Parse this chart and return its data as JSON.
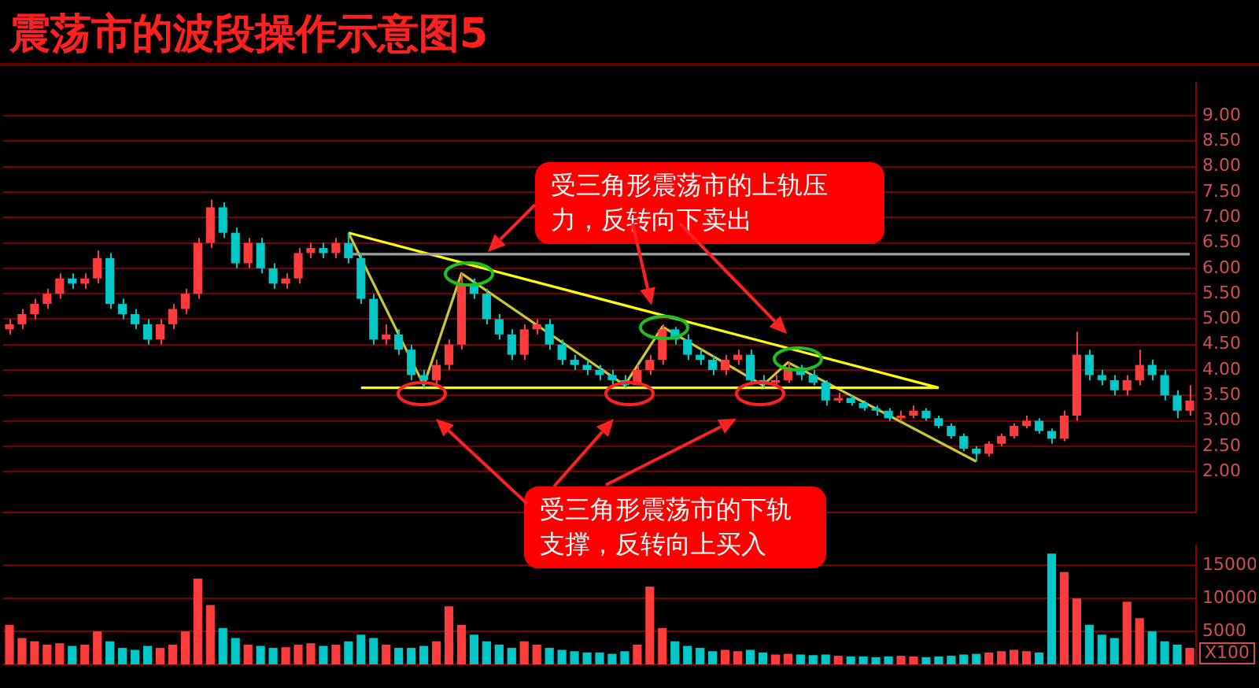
{
  "chart_data": [
    {
      "type": "candlestick",
      "title": "震荡市的波段操作示意图5",
      "categories": [
        null,
        null,
        null,
        null,
        null,
        null,
        null,
        null,
        null,
        null,
        null,
        null,
        null,
        null,
        null,
        null,
        null,
        null,
        null,
        null,
        null,
        null,
        null,
        null,
        null,
        null,
        null,
        null,
        null,
        null,
        null,
        null,
        null,
        null,
        null,
        null,
        null,
        null,
        null,
        null,
        null,
        null,
        null,
        null,
        null,
        null,
        null,
        null,
        null,
        null,
        null,
        null,
        null,
        null,
        null,
        null,
        null,
        null,
        null,
        null,
        null,
        null,
        null,
        null,
        null,
        null,
        null,
        null,
        null,
        null,
        null,
        null,
        null,
        null,
        null,
        null,
        null,
        null,
        null,
        null,
        null,
        null,
        null,
        null,
        null,
        null,
        null,
        null,
        null,
        null,
        null,
        null,
        null,
        null,
        null
      ],
      "ohlc": [
        [
          4.8,
          5.0,
          4.7,
          4.9
        ],
        [
          4.9,
          5.2,
          4.8,
          5.1
        ],
        [
          5.1,
          5.4,
          5.0,
          5.3
        ],
        [
          5.3,
          5.6,
          5.2,
          5.5
        ],
        [
          5.5,
          5.9,
          5.4,
          5.8
        ],
        [
          5.8,
          5.9,
          5.6,
          5.7
        ],
        [
          5.7,
          5.9,
          5.6,
          5.8
        ],
        [
          5.8,
          6.35,
          5.7,
          6.2
        ],
        [
          6.2,
          6.3,
          5.2,
          5.3
        ],
        [
          5.3,
          5.4,
          5.0,
          5.1
        ],
        [
          5.1,
          5.2,
          4.8,
          4.9
        ],
        [
          4.9,
          5.0,
          4.5,
          4.6
        ],
        [
          4.6,
          5.0,
          4.5,
          4.9
        ],
        [
          4.9,
          5.3,
          4.8,
          5.2
        ],
        [
          5.2,
          5.6,
          5.1,
          5.5
        ],
        [
          5.5,
          6.6,
          5.4,
          6.5
        ],
        [
          6.5,
          7.35,
          6.4,
          7.2
        ],
        [
          7.2,
          7.3,
          6.6,
          6.7
        ],
        [
          6.7,
          6.8,
          6.0,
          6.1
        ],
        [
          6.1,
          6.6,
          6.0,
          6.5
        ],
        [
          6.5,
          6.6,
          5.9,
          6.0
        ],
        [
          6.0,
          6.1,
          5.6,
          5.7
        ],
        [
          5.7,
          5.9,
          5.6,
          5.8
        ],
        [
          5.8,
          6.4,
          5.7,
          6.3
        ],
        [
          6.3,
          6.5,
          6.2,
          6.4
        ],
        [
          6.4,
          6.5,
          6.2,
          6.3
        ],
        [
          6.3,
          6.6,
          6.2,
          6.5
        ],
        [
          6.5,
          6.7,
          6.1,
          6.2
        ],
        [
          6.2,
          6.3,
          5.3,
          5.4
        ],
        [
          5.4,
          5.5,
          4.5,
          4.6
        ],
        [
          4.6,
          4.9,
          4.5,
          4.7
        ],
        [
          4.7,
          4.8,
          4.3,
          4.4
        ],
        [
          4.4,
          4.5,
          3.8,
          3.9
        ],
        [
          3.9,
          4.0,
          3.65,
          3.8
        ],
        [
          3.8,
          4.2,
          3.7,
          4.1
        ],
        [
          4.1,
          4.6,
          4.0,
          4.5
        ],
        [
          4.5,
          5.9,
          4.4,
          5.7
        ],
        [
          5.7,
          5.8,
          5.4,
          5.5
        ],
        [
          5.5,
          5.6,
          4.9,
          5.0
        ],
        [
          5.0,
          5.1,
          4.6,
          4.7
        ],
        [
          4.7,
          4.8,
          4.2,
          4.3
        ],
        [
          4.3,
          4.9,
          4.2,
          4.8
        ],
        [
          4.8,
          5.0,
          4.7,
          4.9
        ],
        [
          4.9,
          5.0,
          4.4,
          4.5
        ],
        [
          4.5,
          4.6,
          4.1,
          4.2
        ],
        [
          4.2,
          4.3,
          4.0,
          4.1
        ],
        [
          4.1,
          4.2,
          3.9,
          4.0
        ],
        [
          4.0,
          4.1,
          3.8,
          3.9
        ],
        [
          3.9,
          4.0,
          3.7,
          3.8
        ],
        [
          3.8,
          3.9,
          3.65,
          3.7
        ],
        [
          3.7,
          4.1,
          3.7,
          4.0
        ],
        [
          4.0,
          4.3,
          3.9,
          4.2
        ],
        [
          4.2,
          4.9,
          4.1,
          4.8
        ],
        [
          4.8,
          4.85,
          4.5,
          4.6
        ],
        [
          4.6,
          4.7,
          4.2,
          4.3
        ],
        [
          4.3,
          4.4,
          4.1,
          4.2
        ],
        [
          4.2,
          4.3,
          3.9,
          4.0
        ],
        [
          4.0,
          4.3,
          3.9,
          4.2
        ],
        [
          4.2,
          4.4,
          4.1,
          4.3
        ],
        [
          4.3,
          4.4,
          3.7,
          3.8
        ],
        [
          3.8,
          3.9,
          3.65,
          3.75
        ],
        [
          3.75,
          3.9,
          3.7,
          3.8
        ],
        [
          3.8,
          4.15,
          3.75,
          4.05
        ],
        [
          4.05,
          4.1,
          3.8,
          3.9
        ],
        [
          3.9,
          4.0,
          3.7,
          3.75
        ],
        [
          3.75,
          3.8,
          3.3,
          3.4
        ],
        [
          3.4,
          3.55,
          3.35,
          3.45
        ],
        [
          3.45,
          3.5,
          3.3,
          3.35
        ],
        [
          3.35,
          3.4,
          3.2,
          3.25
        ],
        [
          3.25,
          3.3,
          3.1,
          3.2
        ],
        [
          3.2,
          3.25,
          3.0,
          3.05
        ],
        [
          3.05,
          3.2,
          3.0,
          3.1
        ],
        [
          3.1,
          3.3,
          3.05,
          3.2
        ],
        [
          3.2,
          3.25,
          3.0,
          3.05
        ],
        [
          3.05,
          3.1,
          2.85,
          2.9
        ],
        [
          2.9,
          2.95,
          2.65,
          2.7
        ],
        [
          2.7,
          2.75,
          2.4,
          2.45
        ],
        [
          2.45,
          2.5,
          2.2,
          2.35
        ],
        [
          2.35,
          2.6,
          2.3,
          2.55
        ],
        [
          2.55,
          2.75,
          2.5,
          2.7
        ],
        [
          2.7,
          2.95,
          2.65,
          2.9
        ],
        [
          2.9,
          3.1,
          2.85,
          3.0
        ],
        [
          3.0,
          3.05,
          2.75,
          2.8
        ],
        [
          2.8,
          2.85,
          2.55,
          2.65
        ],
        [
          2.65,
          3.2,
          2.6,
          3.1
        ],
        [
          3.1,
          4.75,
          3.0,
          4.3
        ],
        [
          4.3,
          4.4,
          3.8,
          3.9
        ],
        [
          3.9,
          4.0,
          3.7,
          3.8
        ],
        [
          3.8,
          3.9,
          3.5,
          3.6
        ],
        [
          3.6,
          3.9,
          3.5,
          3.8
        ],
        [
          3.8,
          4.4,
          3.7,
          4.1
        ],
        [
          4.1,
          4.2,
          3.8,
          3.9
        ],
        [
          3.9,
          4.0,
          3.4,
          3.5
        ],
        [
          3.5,
          3.6,
          3.05,
          3.2
        ],
        [
          3.2,
          3.7,
          3.1,
          3.4
        ]
      ],
      "colors": [
        "#ff3c3c",
        "#ff3c3c",
        "#ff3c3c",
        "#ff3c3c",
        "#ff3c3c",
        "#00c8c8",
        "#ff3c3c",
        "#ff3c3c",
        "#00c8c8",
        "#00c8c8",
        "#00c8c8",
        "#00c8c8",
        "#ff3c3c",
        "#ff3c3c",
        "#ff3c3c",
        "#ff3c3c",
        "#ff3c3c",
        "#00c8c8",
        "#00c8c8",
        "#ff3c3c",
        "#00c8c8",
        "#00c8c8",
        "#ff3c3c",
        "#ff3c3c",
        "#ff3c3c",
        "#00c8c8",
        "#ff3c3c",
        "#00c8c8",
        "#00c8c8",
        "#00c8c8",
        "#ff3c3c",
        "#00c8c8",
        "#00c8c8",
        "#00c8c8",
        "#ff3c3c",
        "#ff3c3c",
        "#ff3c3c",
        "#00c8c8",
        "#00c8c8",
        "#00c8c8",
        "#00c8c8",
        "#ff3c3c",
        "#ff3c3c",
        "#00c8c8",
        "#00c8c8",
        "#00c8c8",
        "#00c8c8",
        "#00c8c8",
        "#00c8c8",
        "#00c8c8",
        "#ff3c3c",
        "#ff3c3c",
        "#ff3c3c",
        "#00c8c8",
        "#00c8c8",
        "#00c8c8",
        "#00c8c8",
        "#ff3c3c",
        "#ff3c3c",
        "#00c8c8",
        "#00c8c8",
        "#ff3c3c",
        "#ff3c3c",
        "#00c8c8",
        "#00c8c8",
        "#00c8c8",
        "#ff3c3c",
        "#00c8c8",
        "#00c8c8",
        "#00c8c8",
        "#00c8c8",
        "#ff3c3c",
        "#ff3c3c",
        "#00c8c8",
        "#00c8c8",
        "#00c8c8",
        "#00c8c8",
        "#00c8c8",
        "#ff3c3c",
        "#ff3c3c",
        "#ff3c3c",
        "#ff3c3c",
        "#00c8c8",
        "#00c8c8",
        "#ff3c3c",
        "#ff3c3c",
        "#00c8c8",
        "#00c8c8",
        "#00c8c8",
        "#ff3c3c",
        "#ff3c3c",
        "#00c8c8",
        "#00c8c8",
        "#00c8c8",
        "#ff3c3c"
      ],
      "ylim": [
        1.2,
        9.65
      ],
      "yticks": [
        {
          "value": 2,
          "label": "2.00"
        },
        {
          "value": 2.5,
          "label": "2.50"
        },
        {
          "value": 3,
          "label": "3.00"
        },
        {
          "value": 3.5,
          "label": "3.50"
        },
        {
          "value": 4,
          "label": "4.00"
        },
        {
          "value": 4.5,
          "label": "4.50"
        },
        {
          "value": 5,
          "label": "5.00"
        },
        {
          "value": 5.5,
          "label": "5.50"
        },
        {
          "value": 6,
          "label": "6.00"
        },
        {
          "value": 6.5,
          "label": "6.50"
        },
        {
          "value": 7,
          "label": "7.00"
        },
        {
          "value": 7.5,
          "label": "7.50"
        },
        {
          "value": 8,
          "label": "8.00"
        },
        {
          "value": 8.5,
          "label": "8.50"
        },
        {
          "value": 9,
          "label": "9.00"
        }
      ],
      "tick_labels": "y",
      "grid": "y",
      "legend": false,
      "annotations": [
        "受三角形震荡市的上轨压力，反转向下卖出",
        "受三角形震荡市的下轨支撑，反转向上买入"
      ],
      "series": [
        {
          "type": "line",
          "color": "#a0a0a0",
          "values": [
            null,
            null,
            null,
            null,
            null,
            null,
            null,
            null,
            null,
            null,
            null,
            null,
            null,
            null,
            null,
            null,
            null,
            null,
            null,
            null,
            null,
            null,
            null,
            null,
            null,
            null,
            null,
            6.28,
            null,
            null,
            null,
            null,
            null,
            null,
            null,
            null,
            null,
            null,
            null,
            null,
            null,
            null,
            null,
            null,
            null,
            null,
            null,
            null,
            null,
            null,
            null,
            null,
            null,
            null,
            null,
            null,
            null,
            null,
            null,
            null,
            null,
            null,
            null,
            null,
            null,
            null,
            null,
            null,
            null,
            null,
            null,
            null,
            null,
            null,
            null,
            null,
            null,
            null,
            null,
            null,
            null,
            null,
            null,
            null,
            null,
            null,
            null,
            null,
            null,
            null,
            null,
            null,
            null,
            null,
            6.28
          ]
        },
        {
          "type": "line",
          "color": "#ffff00",
          "values": [
            null,
            null,
            null,
            null,
            null,
            null,
            null,
            null,
            null,
            null,
            null,
            null,
            null,
            null,
            null,
            null,
            null,
            null,
            null,
            null,
            null,
            null,
            null,
            null,
            null,
            null,
            null,
            6.7,
            null,
            null,
            null,
            null,
            null,
            null,
            null,
            null,
            null,
            null,
            null,
            null,
            null,
            null,
            null,
            null,
            null,
            null,
            null,
            null,
            null,
            null,
            null,
            null,
            null,
            null,
            null,
            null,
            null,
            null,
            null,
            null,
            null,
            null,
            null,
            null,
            null,
            null,
            null,
            null,
            null,
            null,
            null,
            null,
            null,
            null,
            3.65,
            null,
            null,
            null,
            null,
            null,
            null,
            null,
            null,
            null,
            null,
            null,
            null,
            null,
            null,
            null,
            null,
            null,
            null,
            null,
            null
          ]
        },
        {
          "type": "line",
          "color": "#ffff00",
          "values": [
            null,
            null,
            null,
            null,
            null,
            null,
            null,
            null,
            null,
            null,
            null,
            null,
            null,
            null,
            null,
            null,
            null,
            null,
            null,
            null,
            null,
            null,
            null,
            null,
            null,
            null,
            null,
            null,
            3.65,
            null,
            null,
            null,
            null,
            null,
            null,
            null,
            null,
            null,
            null,
            null,
            null,
            null,
            null,
            null,
            null,
            null,
            null,
            null,
            null,
            null,
            null,
            null,
            null,
            null,
            null,
            null,
            null,
            null,
            null,
            null,
            null,
            null,
            null,
            null,
            null,
            null,
            null,
            null,
            null,
            null,
            null,
            null,
            null,
            null,
            3.65,
            null,
            null,
            null,
            null,
            null,
            null,
            null,
            null,
            null,
            null,
            null,
            null,
            null,
            null,
            null,
            null,
            null,
            null,
            null,
            null
          ]
        },
        {
          "type": "line",
          "color": "#c8c832",
          "values": [
            null,
            null,
            null,
            null,
            null,
            null,
            null,
            null,
            null,
            null,
            null,
            null,
            null,
            null,
            null,
            null,
            null,
            null,
            null,
            null,
            null,
            null,
            null,
            null,
            null,
            null,
            null,
            6.7,
            null,
            null,
            null,
            null,
            null,
            3.7,
            null,
            null,
            5.9,
            null,
            null,
            null,
            null,
            null,
            null,
            null,
            null,
            null,
            null,
            null,
            null,
            3.7,
            null,
            null,
            4.85,
            null,
            null,
            null,
            null,
            null,
            null,
            null,
            3.7,
            null,
            4.15,
            null,
            null,
            null,
            null,
            null,
            null,
            null,
            null,
            null,
            null,
            null,
            null,
            null,
            null,
            2.2,
            null,
            null,
            null,
            null,
            null,
            null,
            null,
            null,
            null,
            null,
            null,
            null,
            null,
            null,
            null,
            null,
            null
          ]
        }
      ]
    },
    {
      "type": "bar",
      "ylabel": "X100",
      "categories": [
        null,
        null,
        null,
        null,
        null,
        null,
        null,
        null,
        null,
        null,
        null,
        null,
        null,
        null,
        null,
        null,
        null,
        null,
        null,
        null,
        null,
        null,
        null,
        null,
        null,
        null,
        null,
        null,
        null,
        null,
        null,
        null,
        null,
        null,
        null,
        null,
        null,
        null,
        null,
        null,
        null,
        null,
        null,
        null,
        null,
        null,
        null,
        null,
        null,
        null,
        null,
        null,
        null,
        null,
        null,
        null,
        null,
        null,
        null,
        null,
        null,
        null,
        null,
        null,
        null,
        null,
        null,
        null,
        null,
        null,
        null,
        null,
        null,
        null,
        null,
        null,
        null,
        null,
        null,
        null,
        null,
        null,
        null,
        null,
        null,
        null,
        null,
        null,
        null,
        null,
        null,
        null,
        null,
        null,
        null
      ],
      "values": [
        6000,
        4000,
        3500,
        3000,
        3200,
        2800,
        3000,
        5000,
        3500,
        2500,
        2200,
        2800,
        2500,
        3000,
        5000,
        13000,
        9000,
        5500,
        4000,
        3000,
        2800,
        2500,
        2600,
        3000,
        3200,
        2800,
        3000,
        3500,
        4500,
        4000,
        3000,
        2500,
        2500,
        2800,
        3500,
        8800,
        6000,
        4500,
        3500,
        3000,
        2500,
        3500,
        3000,
        2500,
        2200,
        2000,
        1800,
        1800,
        1600,
        2000,
        3000,
        11800,
        5500,
        3500,
        2800,
        2500,
        2000,
        2200,
        2000,
        2200,
        1800,
        1500,
        1600,
        1500,
        1400,
        1500,
        1300,
        1200,
        1200,
        1100,
        1200,
        1300,
        1200,
        1100,
        1200,
        1300,
        1500,
        1600,
        1800,
        2000,
        2200,
        2000,
        1800,
        16800,
        14000,
        10000,
        6000,
        4500,
        4000,
        9500,
        7000,
        5000,
        3500,
        3000,
        2500
      ],
      "colors": [
        "#ff3c3c",
        "#ff3c3c",
        "#ff3c3c",
        "#ff3c3c",
        "#ff3c3c",
        "#00c8c8",
        "#ff3c3c",
        "#ff3c3c",
        "#00c8c8",
        "#00c8c8",
        "#00c8c8",
        "#00c8c8",
        "#ff3c3c",
        "#ff3c3c",
        "#ff3c3c",
        "#ff3c3c",
        "#ff3c3c",
        "#00c8c8",
        "#00c8c8",
        "#ff3c3c",
        "#00c8c8",
        "#00c8c8",
        "#ff3c3c",
        "#ff3c3c",
        "#ff3c3c",
        "#00c8c8",
        "#ff3c3c",
        "#00c8c8",
        "#00c8c8",
        "#00c8c8",
        "#ff3c3c",
        "#00c8c8",
        "#00c8c8",
        "#00c8c8",
        "#ff3c3c",
        "#ff3c3c",
        "#ff3c3c",
        "#00c8c8",
        "#00c8c8",
        "#00c8c8",
        "#00c8c8",
        "#ff3c3c",
        "#ff3c3c",
        "#00c8c8",
        "#00c8c8",
        "#00c8c8",
        "#00c8c8",
        "#00c8c8",
        "#00c8c8",
        "#00c8c8",
        "#ff3c3c",
        "#ff3c3c",
        "#ff3c3c",
        "#00c8c8",
        "#00c8c8",
        "#00c8c8",
        "#00c8c8",
        "#ff3c3c",
        "#ff3c3c",
        "#00c8c8",
        "#00c8c8",
        "#ff3c3c",
        "#ff3c3c",
        "#00c8c8",
        "#00c8c8",
        "#00c8c8",
        "#ff3c3c",
        "#00c8c8",
        "#00c8c8",
        "#00c8c8",
        "#00c8c8",
        "#ff3c3c",
        "#ff3c3c",
        "#00c8c8",
        "#00c8c8",
        "#00c8c8",
        "#00c8c8",
        "#00c8c8",
        "#ff3c3c",
        "#ff3c3c",
        "#ff3c3c",
        "#ff3c3c",
        "#00c8c8",
        "#00c8c8",
        "#ff3c3c",
        "#ff3c3c",
        "#00c8c8",
        "#00c8c8",
        "#00c8c8",
        "#ff3c3c",
        "#ff3c3c",
        "#00c8c8",
        "#00c8c8",
        "#00c8c8",
        "#ff3c3c"
      ],
      "ylim": [
        0,
        18000
      ],
      "yticks": [
        5000,
        10000,
        15000
      ],
      "tick_labels": "y",
      "grid": "y",
      "legend": false
    }
  ]
}
